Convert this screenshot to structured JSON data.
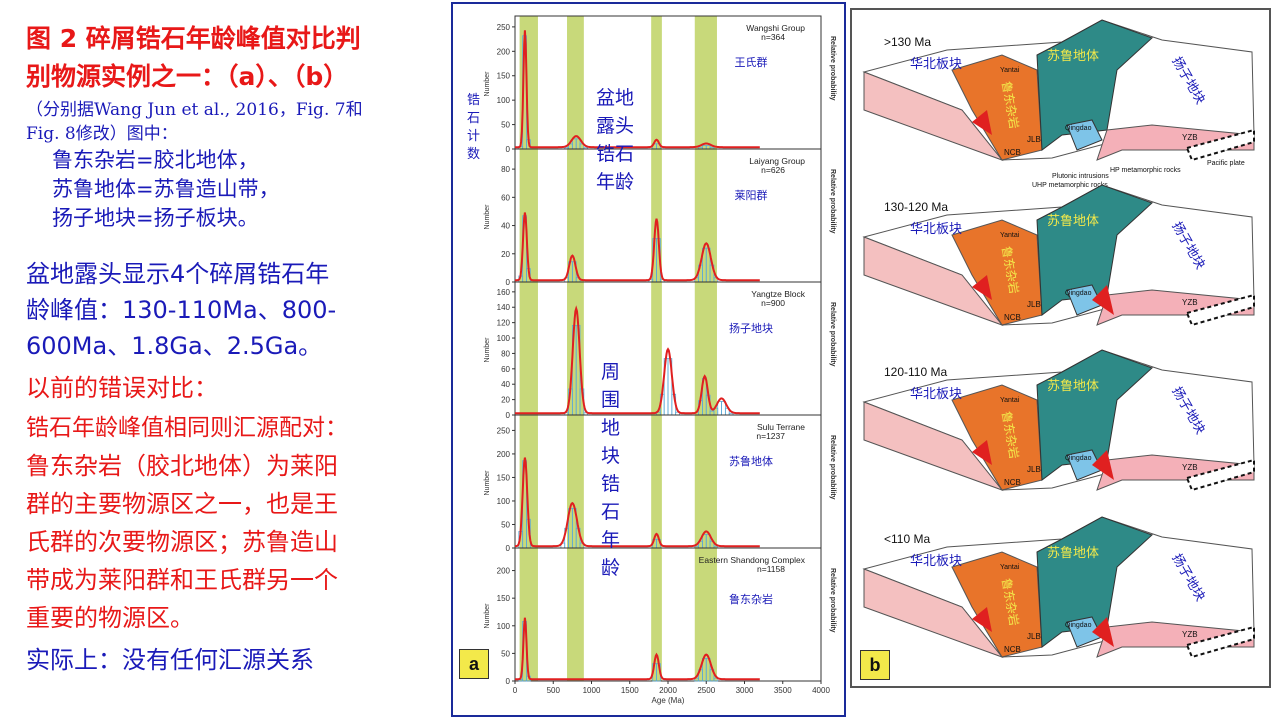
{
  "left": {
    "title_line1": "图 2 碎屑锆石年龄峰值对比判",
    "title_line2": "别物源实例之一：（a）、（b）",
    "ref_line1": "（分别据Wang Jun et al., 2016，Fig. 7和",
    "ref_line2": "Fig. 8修改）图中：",
    "def1": "鲁东杂岩=胶北地体，",
    "def2": "苏鲁地体=苏鲁造山带，",
    "def3": "扬子地块=扬子板块。",
    "basin_line1": "盆地露头显示4个碎屑锆石年",
    "basin_line2": "龄峰值：130-110Ma、800-",
    "basin_line3": "600Ma、1.8Ga、2.5Ga。",
    "prev_line": "以前的错误对比：",
    "red_line1": "锆石年龄峰值相同则汇源配对：",
    "red_line2": "鲁东杂岩（胶北地体）为莱阳",
    "red_line3": "群的主要物源区之一，也是王",
    "red_line4": "氏群的次要物源区；苏鲁造山",
    "red_line5": "带成为莱阳群和王氏群另一个",
    "red_line6": "重要的物源区。",
    "actual_line": "实际上：没有任何汇源关系"
  },
  "panel_a": {
    "tag": "a",
    "ylabel_cn": [
      "锆",
      "石",
      "计",
      "数"
    ],
    "basin_annot": [
      "盆地",
      "露头",
      "锆石",
      "年龄"
    ],
    "surround_annot": [
      "周",
      "围",
      "地",
      "块",
      "锆",
      "石",
      "年",
      "龄"
    ],
    "y_axis_label": "Number",
    "right_axis_label": "Relative probability",
    "x_axis_label": "Age (Ma)",
    "x_ticks": [
      "0",
      "500",
      "1000",
      "1500",
      "2000",
      "2500",
      "3000",
      "3500",
      "4000"
    ],
    "panels": [
      {
        "name": "Wangshi Group",
        "n": "n=364",
        "cn": "王氏群",
        "yticks": [
          "0",
          "50",
          "100",
          "150",
          "200",
          "250"
        ]
      },
      {
        "name": "Laiyang Group",
        "n": "n=626",
        "cn": "莱阳群",
        "yticks": [
          "0",
          "20",
          "40",
          "60",
          "80"
        ]
      },
      {
        "name": "Yangtze Block",
        "n": "n=900",
        "cn": "扬子地块",
        "yticks": [
          "0",
          "20",
          "40",
          "60",
          "80",
          "100",
          "120",
          "140",
          "160"
        ]
      },
      {
        "name": "Sulu Terrane",
        "n": "n=1237",
        "cn": "苏鲁地体",
        "yticks": [
          "0",
          "50",
          "100",
          "150",
          "200",
          "250"
        ]
      },
      {
        "name": "Eastern Shandong Complex",
        "n": "n=1158",
        "cn": "鲁东杂岩",
        "yticks": [
          "0",
          "50",
          "100",
          "150",
          "200"
        ]
      }
    ]
  },
  "panel_b": {
    "tag": "b",
    "blocks": [
      {
        "age": ">130 Ma",
        "ncb": "华北板块",
        "sulu": "苏鲁地体",
        "yz": "扬子地块",
        "jiaobei": "鲁东杂岩"
      },
      {
        "age": "130-120 Ma",
        "ncb": "华北板块",
        "sulu": "苏鲁地体",
        "yz": "扬子地块",
        "jiaobei": "鲁东杂岩"
      },
      {
        "age": "120-110 Ma",
        "ncb": "华北板块",
        "sulu": "苏鲁地体",
        "yz": "扬子地块",
        "jiaobei": "鲁东杂岩"
      },
      {
        "age": "<110 Ma",
        "ncb": "华北板块",
        "sulu": "苏鲁地体",
        "yz": "扬子地块",
        "jiaobei": "鲁东杂岩"
      }
    ],
    "labels": {
      "yantai": "Yantai",
      "qingdao": "Qingdao",
      "ncb": "NCB",
      "jlb": "JLB",
      "yzb": "YZB",
      "pacific": "Pacific plate",
      "hp": "HP metamorphic rocks",
      "plutonic": "Plutonic intrusions",
      "uhp": "UHP metamorphic rocks"
    }
  },
  "colors": {
    "title_red": "#e81818",
    "text_blue": "#1a1ab8",
    "peak_band": "#c8d97a",
    "kde_red": "#e02020",
    "hist_blue": "#5ba9d6"
  }
}
